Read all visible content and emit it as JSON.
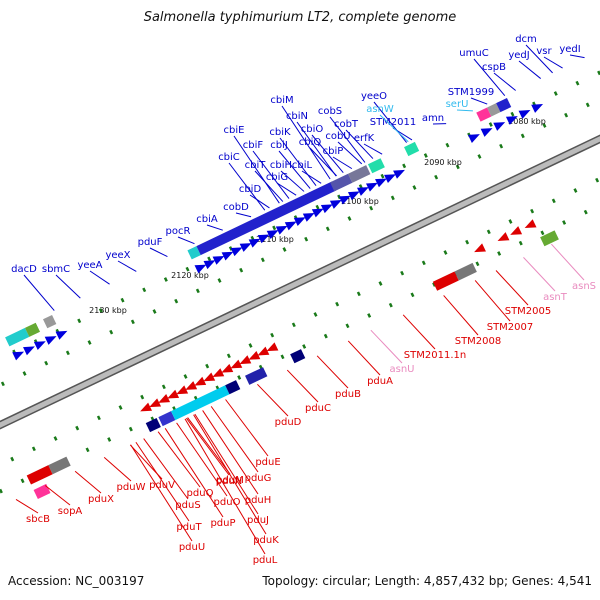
{
  "title": "Salmonella typhimurium LT2, complete genome",
  "footer": {
    "accession": "Accession: NC_003197",
    "topology": "Topology: circular; Length: 4,857,432 bp; Genes: 4,541"
  },
  "colors": {
    "forward_label": "#0000cc",
    "reverse_label": "#dd0000",
    "trna_label": "#e98bbf",
    "rrna_label": "#33bbee",
    "backbone": "#888888",
    "tick": "#1a7a1a"
  },
  "ticks": [
    "2080 kbp",
    "2090 kbp",
    "2100 kbp",
    "2110 kbp",
    "2120 kbp",
    "2130 kbp"
  ],
  "forward_genes": [
    "dacD",
    "sbmC",
    "yeeA",
    "yeeX",
    "pduF",
    "pocR",
    "cbiA",
    "cobD",
    "cbiD",
    "cbiC",
    "cbiE",
    "cbiF",
    "cbiT",
    "cbiG",
    "cbiH",
    "cbiJ",
    "cbiK",
    "cbiL",
    "cbiM",
    "cbiN",
    "cbiO",
    "cbiQ",
    "cbiP",
    "cobU",
    "cobS",
    "cobT",
    "erfK",
    "yeeO",
    "STM2011",
    "amn",
    "STM1999",
    "umuC",
    "cspB",
    "yedJ",
    "dcm",
    "vsr",
    "yedI"
  ],
  "rrna_genes": [
    "asnW",
    "serU"
  ],
  "reverse_genes": [
    "sbcB",
    "sopA",
    "pduX",
    "pduW",
    "pduV",
    "pduS",
    "pduT",
    "pduU",
    "pduQ",
    "pduP",
    "pduO",
    "pduN",
    "pduM",
    "pduH",
    "pduG",
    "pduJ",
    "pduK",
    "pduL",
    "pduE",
    "pduD",
    "pduC",
    "pduB",
    "pduA",
    "asnU",
    "STM2011.1n",
    "STM2008",
    "STM2007",
    "STM2005",
    "asnT",
    "asnS"
  ],
  "trna_genes": [
    "asnU",
    "asnT",
    "asnS"
  ]
}
